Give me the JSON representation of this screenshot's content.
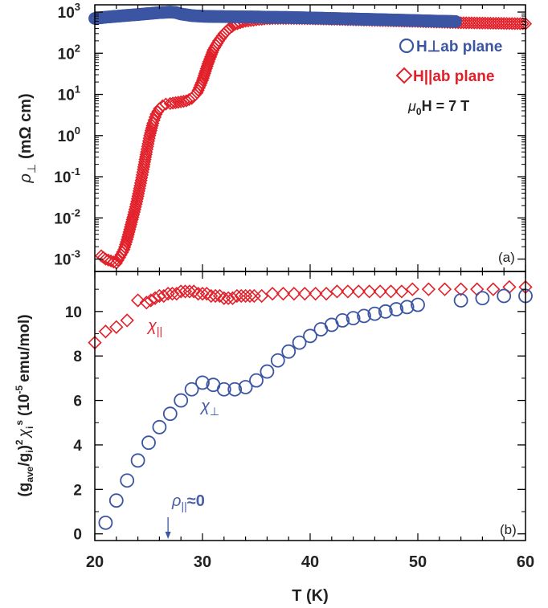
{
  "chart_data": [
    {
      "panel": "(a)",
      "type": "scatter",
      "ylabel_symbol": "ρ",
      "ylabel_sub": "⊥",
      "ylabel_units": "(mΩ cm)",
      "log_y": true,
      "ylim": [
        0.0005,
        1500
      ],
      "xlim": [
        20,
        60
      ],
      "ytick_labels": [
        {
          "base": "10",
          "exp": "3",
          "value": 1000
        },
        {
          "base": "10",
          "exp": "2",
          "value": 100
        },
        {
          "base": "10",
          "exp": "1",
          "value": 10
        },
        {
          "base": "10",
          "exp": "0",
          "value": 1
        },
        {
          "base": "10",
          "exp": "-1",
          "value": 0.1
        },
        {
          "base": "10",
          "exp": "-2",
          "value": 0.01
        },
        {
          "base": "10",
          "exp": "-3",
          "value": 0.001
        }
      ],
      "legend": {
        "placement": "top-right",
        "entries": [
          {
            "label": "H⊥ab plane",
            "marker": "circle",
            "color": "#3b55a3"
          },
          {
            "label": "H||ab plane",
            "marker": "diamond",
            "color": "#e2202a"
          }
        ],
        "field_sym": "μ",
        "field_sub": "0",
        "field_rest": "H = 7 T"
      },
      "series": [
        {
          "name": "H⊥ab plane",
          "marker": "circle",
          "color": "#3b55a3",
          "points": [
            [
              20,
              700
            ],
            [
              21,
              750
            ],
            [
              22,
              790
            ],
            [
              23,
              830
            ],
            [
              24,
              870
            ],
            [
              25,
              920
            ],
            [
              26,
              970
            ],
            [
              27,
              1000
            ],
            [
              27.5,
              980
            ],
            [
              28,
              900
            ],
            [
              29,
              820
            ],
            [
              30,
              790
            ],
            [
              31,
              780
            ],
            [
              32,
              775
            ],
            [
              33,
              770
            ],
            [
              34,
              765
            ],
            [
              35,
              760
            ],
            [
              36,
              750
            ],
            [
              38,
              740
            ],
            [
              40,
              720
            ],
            [
              42,
              700
            ],
            [
              44,
              680
            ],
            [
              46,
              660
            ],
            [
              48,
              640
            ],
            [
              50,
              620
            ],
            [
              52,
              600
            ],
            [
              53.5,
              590
            ]
          ]
        },
        {
          "name": "H||ab plane",
          "marker": "diamond",
          "color": "#e2202a",
          "points": [
            [
              20.6,
              0.0012
            ],
            [
              21,
              0.001
            ],
            [
              21.5,
              0.0009
            ],
            [
              22,
              0.0008
            ],
            [
              22.3,
              0.0011
            ],
            [
              22.7,
              0.0017
            ],
            [
              23,
              0.003
            ],
            [
              23.3,
              0.006
            ],
            [
              23.6,
              0.012
            ],
            [
              23.9,
              0.025
            ],
            [
              24.2,
              0.06
            ],
            [
              24.5,
              0.15
            ],
            [
              24.8,
              0.4
            ],
            [
              25.1,
              1.0
            ],
            [
              25.4,
              2.0
            ],
            [
              25.7,
              3.3
            ],
            [
              26,
              4.5
            ],
            [
              26.3,
              5.3
            ],
            [
              26.6,
              5.8
            ],
            [
              27,
              6.0
            ],
            [
              27.5,
              6.3
            ],
            [
              28,
              6.6
            ],
            [
              28.5,
              7.0
            ],
            [
              29,
              8.0
            ],
            [
              29.5,
              11
            ],
            [
              30,
              22
            ],
            [
              30.5,
              55
            ],
            [
              31,
              120
            ],
            [
              31.5,
              200
            ],
            [
              32,
              300
            ],
            [
              32.5,
              400
            ],
            [
              33,
              500
            ],
            [
              34,
              600
            ],
            [
              35,
              650
            ],
            [
              36,
              690
            ],
            [
              37,
              700
            ],
            [
              38,
              700
            ],
            [
              40,
              690
            ],
            [
              42,
              670
            ],
            [
              44,
              650
            ],
            [
              46,
              630
            ],
            [
              48,
              610
            ],
            [
              50,
              590
            ],
            [
              52,
              570
            ],
            [
              54,
              550
            ],
            [
              56,
              540
            ],
            [
              58,
              530
            ],
            [
              60,
              520
            ]
          ]
        }
      ]
    },
    {
      "panel": "(b)",
      "type": "scatter",
      "ylabel_prefix": "(g",
      "ylabel_sub1": "ave",
      "ylabel_mid": "/g",
      "ylabel_sub2": "i",
      "ylabel_close": ")",
      "ylabel_sup2": "2",
      "ylabel_chi": "χ",
      "ylabel_chisub": "i",
      "ylabel_chisup": "s",
      "ylabel_units_pre": "(10",
      "ylabel_units_exp": "-5",
      "ylabel_units_post": "emu/mol)",
      "xlabel": "T (K)",
      "xlim": [
        20,
        60
      ],
      "ylim": [
        -0.3,
        11.8
      ],
      "xticks": [
        "20",
        "30",
        "40",
        "50",
        "60"
      ],
      "yticks": [
        "0",
        "2",
        "4",
        "6",
        "8",
        "10"
      ],
      "annotations": {
        "chi_par_sym": "χ",
        "chi_par_sub": "||",
        "chi_perp_sym": "χ",
        "chi_perp_sub": "⊥",
        "rho_sym": "ρ",
        "rho_sub": "||",
        "rho_rest": "≈0",
        "arrow_T": 26.8
      },
      "series": [
        {
          "name": "χ||",
          "marker": "diamond",
          "color": "#e2202a",
          "points": [
            [
              20,
              8.6
            ],
            [
              21,
              9.1
            ],
            [
              22,
              9.3
            ],
            [
              23,
              9.6
            ],
            [
              24,
              10.5
            ],
            [
              24.8,
              10.4
            ],
            [
              25.2,
              10.5
            ],
            [
              25.6,
              10.6
            ],
            [
              26,
              10.7
            ],
            [
              26.4,
              10.7
            ],
            [
              26.8,
              10.8
            ],
            [
              27.2,
              10.8
            ],
            [
              27.6,
              10.8
            ],
            [
              28,
              10.9
            ],
            [
              28.4,
              10.9
            ],
            [
              28.8,
              10.9
            ],
            [
              29.2,
              10.9
            ],
            [
              29.6,
              10.8
            ],
            [
              30,
              10.8
            ],
            [
              30.4,
              10.8
            ],
            [
              30.8,
              10.7
            ],
            [
              31.2,
              10.7
            ],
            [
              31.6,
              10.7
            ],
            [
              32,
              10.6
            ],
            [
              32.4,
              10.6
            ],
            [
              32.8,
              10.6
            ],
            [
              33.2,
              10.7
            ],
            [
              33.6,
              10.7
            ],
            [
              34,
              10.7
            ],
            [
              34.4,
              10.7
            ],
            [
              34.8,
              10.7
            ],
            [
              35.5,
              10.7
            ],
            [
              36.5,
              10.8
            ],
            [
              37.5,
              10.8
            ],
            [
              38.5,
              10.8
            ],
            [
              39.5,
              10.8
            ],
            [
              40.5,
              10.8
            ],
            [
              41.5,
              10.8
            ],
            [
              42.5,
              10.9
            ],
            [
              43.5,
              10.9
            ],
            [
              44.5,
              10.9
            ],
            [
              45.5,
              10.9
            ],
            [
              46.5,
              10.9
            ],
            [
              47.5,
              10.9
            ],
            [
              48.5,
              10.9
            ],
            [
              49.5,
              11.0
            ],
            [
              51,
              11.0
            ],
            [
              52.5,
              11.0
            ],
            [
              54,
              11.0
            ],
            [
              55.5,
              11.0
            ],
            [
              57,
              11.0
            ],
            [
              58.5,
              11.1
            ],
            [
              60,
              11.1
            ]
          ]
        },
        {
          "name": "χ⊥",
          "marker": "circle",
          "color": "#3b55a3",
          "points": [
            [
              21,
              0.5
            ],
            [
              22,
              1.5
            ],
            [
              23,
              2.4
            ],
            [
              24,
              3.3
            ],
            [
              25,
              4.1
            ],
            [
              26,
              4.8
            ],
            [
              27,
              5.4
            ],
            [
              28,
              6.0
            ],
            [
              29,
              6.5
            ],
            [
              30,
              6.8
            ],
            [
              31,
              6.7
            ],
            [
              32,
              6.5
            ],
            [
              33,
              6.5
            ],
            [
              34,
              6.6
            ],
            [
              35,
              6.9
            ],
            [
              36,
              7.3
            ],
            [
              37,
              7.8
            ],
            [
              38,
              8.2
            ],
            [
              39,
              8.6
            ],
            [
              40,
              8.9
            ],
            [
              41,
              9.2
            ],
            [
              42,
              9.4
            ],
            [
              43,
              9.6
            ],
            [
              44,
              9.7
            ],
            [
              45,
              9.8
            ],
            [
              46,
              9.9
            ],
            [
              47,
              10.0
            ],
            [
              48,
              10.1
            ],
            [
              49,
              10.2
            ],
            [
              50,
              10.3
            ],
            [
              54,
              10.5
            ],
            [
              56,
              10.6
            ],
            [
              58,
              10.7
            ],
            [
              60,
              10.7
            ]
          ]
        }
      ]
    }
  ]
}
